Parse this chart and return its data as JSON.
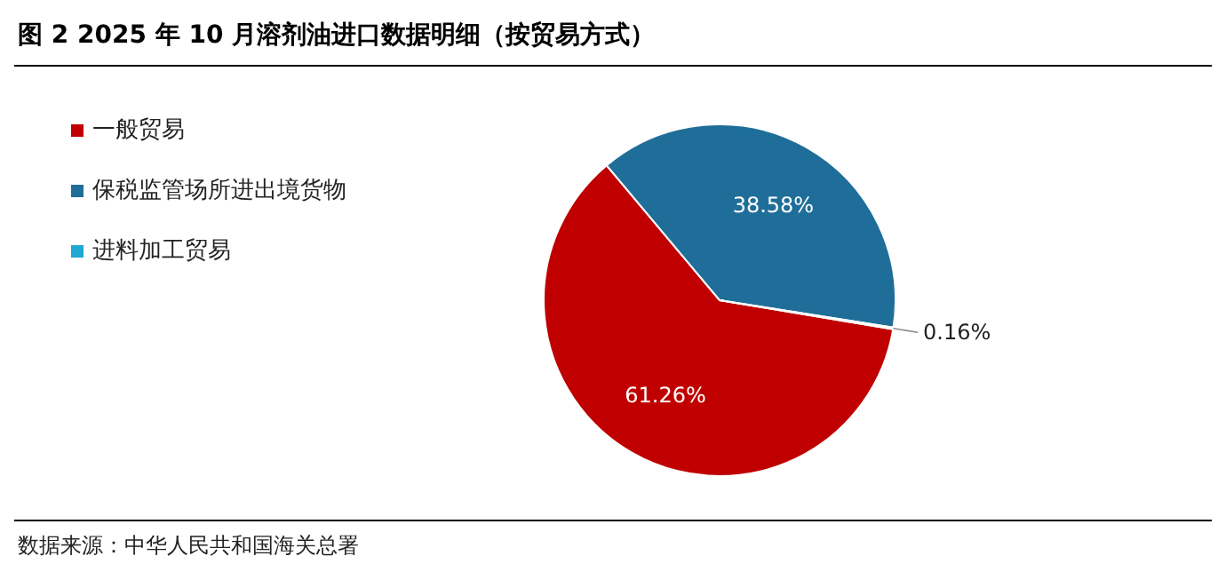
{
  "chart_data": {
    "type": "pie",
    "title": "图 2 2025 年 10 月溶剂油进口数据明细（按贸易方式）",
    "categories": [
      "一般贸易",
      "保税监管场所进出境货物",
      "进料加工贸易"
    ],
    "values": [
      61.26,
      38.58,
      0.16
    ],
    "colors": [
      "#c00000",
      "#1f6e99",
      "#22a7d3"
    ],
    "value_labels": [
      "61.26%",
      "38.58%",
      "0.16%"
    ],
    "legend": "left",
    "annotations": [
      "数据来源：中华人民共和国海关总署"
    ]
  }
}
